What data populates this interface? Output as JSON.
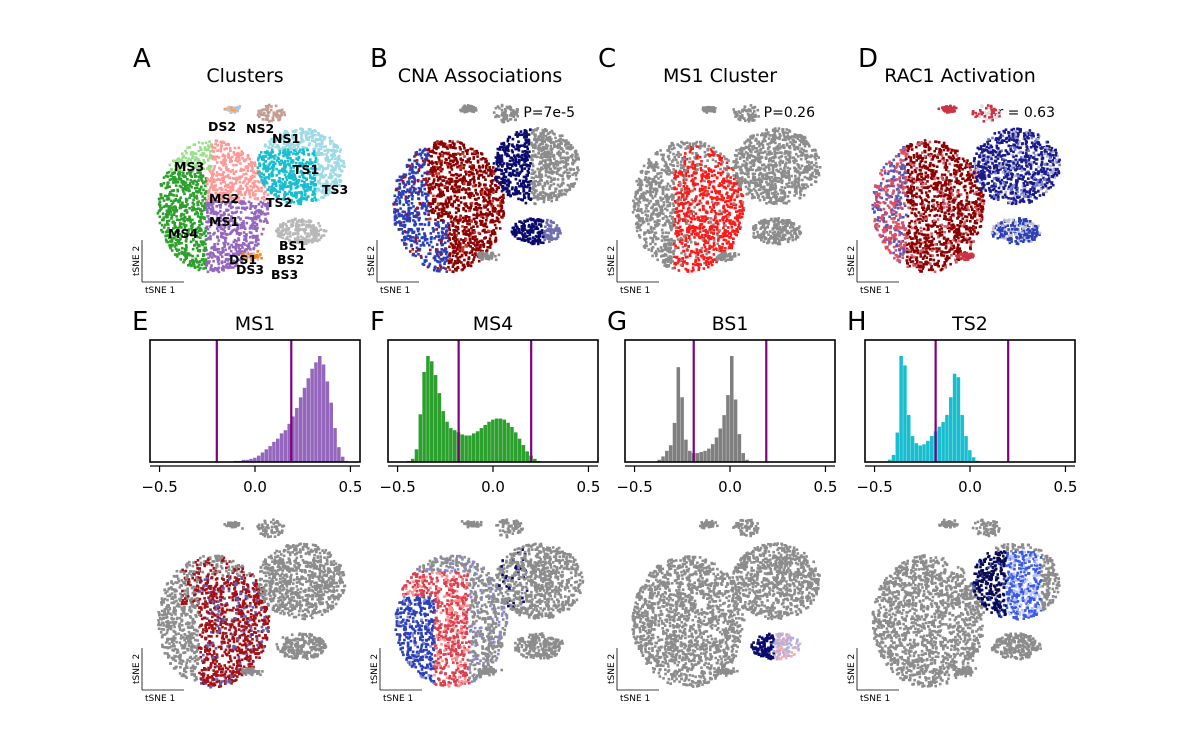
{
  "figure": {
    "panels_top": [
      {
        "letter": "A",
        "title": "Clusters",
        "stat": "",
        "kind": "clusters"
      },
      {
        "letter": "B",
        "title": "CNA Associations",
        "stat": "P=7e-5",
        "kind": "cna"
      },
      {
        "letter": "C",
        "title": "MS1 Cluster",
        "stat": "P=0.26",
        "kind": "ms1"
      },
      {
        "letter": "D",
        "title": "RAC1 Activation",
        "stat": "r = 0.63",
        "kind": "rac1"
      }
    ],
    "panels_bottom": [
      {
        "letter": "E",
        "title": "MS1",
        "kind": "ms1"
      },
      {
        "letter": "F",
        "title": "MS4",
        "kind": "ms4"
      },
      {
        "letter": "G",
        "title": "BS1",
        "kind": "bs1"
      },
      {
        "letter": "H",
        "title": "TS2",
        "kind": "ts2"
      }
    ],
    "axis_labels": {
      "x": "tSNE 1",
      "y": "tSNE 2"
    },
    "cluster_labels": [
      "DS2",
      "NS2",
      "NS1",
      "MS3",
      "TS1",
      "TS3",
      "MS2",
      "TS2",
      "MS1",
      "MS4",
      "BS1",
      "DS1",
      "BS2",
      "DS3",
      "BS3"
    ]
  },
  "chart_data": [
    {
      "type": "histogram",
      "title": "MS1",
      "color": "#9467bd",
      "xlim": [
        -0.55,
        0.55
      ],
      "xticks": [
        -0.5,
        0.0,
        0.5
      ],
      "xtick_labels": [
        "−0.5",
        "0.0",
        "0.5"
      ],
      "threshold_lines": [
        -0.2,
        0.19
      ],
      "threshold_color": "#800080",
      "bin_start": -0.35,
      "bin_width": 0.02,
      "counts": [
        0,
        0,
        0,
        0,
        0,
        0,
        0,
        0,
        0,
        0,
        0,
        0,
        1,
        1,
        2,
        2,
        3,
        4,
        6,
        9,
        12,
        15,
        19,
        22,
        27,
        30,
        36,
        43,
        51,
        61,
        70,
        79,
        88,
        94,
        100,
        92,
        76,
        56,
        32,
        14,
        5,
        1,
        0,
        0,
        0,
        0,
        0,
        0,
        0,
        0
      ]
    },
    {
      "type": "histogram",
      "title": "MS4",
      "color": "#2ca02c",
      "xlim": [
        -0.55,
        0.55
      ],
      "xticks": [
        -0.5,
        0.0,
        0.5
      ],
      "xtick_labels": [
        "−0.5",
        "0.0",
        "0.5"
      ],
      "threshold_lines": [
        -0.18,
        0.2
      ],
      "threshold_color": "#800080",
      "bin_start": -0.45,
      "bin_width": 0.02,
      "counts": [
        1,
        3,
        12,
        45,
        85,
        100,
        95,
        82,
        65,
        48,
        38,
        32,
        30,
        28,
        26,
        25,
        25,
        27,
        29,
        32,
        35,
        38,
        40,
        41,
        41,
        40,
        37,
        33,
        28,
        22,
        16,
        10,
        6,
        3,
        1,
        0,
        0,
        0,
        0,
        0,
        0,
        0,
        0,
        0,
        0
      ]
    },
    {
      "type": "histogram",
      "title": "BS1",
      "color": "#7f7f7f",
      "xlim": [
        -0.55,
        0.55
      ],
      "xticks": [
        -0.5,
        0.0,
        0.5
      ],
      "xtick_labels": [
        "−0.5",
        "0.0",
        "0.5"
      ],
      "threshold_lines": [
        -0.19,
        0.19
      ],
      "threshold_color": "#800080",
      "bin_start": -0.4,
      "bin_width": 0.02,
      "counts": [
        0,
        2,
        5,
        10,
        15,
        35,
        85,
        58,
        20,
        10,
        8,
        8,
        9,
        10,
        12,
        16,
        22,
        30,
        42,
        60,
        95,
        56,
        25,
        8,
        2,
        0,
        0,
        0,
        0,
        0,
        0,
        0,
        0,
        0,
        0,
        0,
        0,
        0,
        0,
        0
      ]
    },
    {
      "type": "histogram",
      "title": "TS2",
      "color": "#17becf",
      "xlim": [
        -0.55,
        0.55
      ],
      "xticks": [
        -0.5,
        0.0,
        0.5
      ],
      "xtick_labels": [
        "−0.5",
        "0.0",
        "0.5"
      ],
      "threshold_lines": [
        -0.18,
        0.2
      ],
      "threshold_color": "#800080",
      "bin_start": -0.45,
      "bin_width": 0.02,
      "counts": [
        0,
        2,
        6,
        25,
        90,
        82,
        40,
        22,
        16,
        14,
        15,
        18,
        22,
        26,
        30,
        34,
        40,
        55,
        75,
        72,
        40,
        22,
        10,
        4,
        1,
        0,
        0,
        0,
        0,
        0,
        0,
        0,
        0,
        0,
        0,
        0,
        0,
        0,
        0,
        0,
        0,
        0,
        0,
        0,
        0
      ]
    }
  ]
}
